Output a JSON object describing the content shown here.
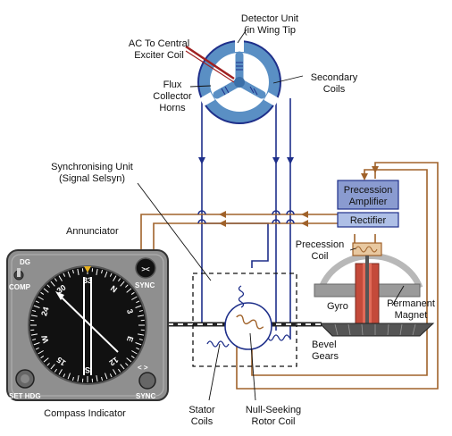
{
  "labels": {
    "detector_unit_line1": "Detector Unit",
    "detector_unit_line2": "(in Wing Tip",
    "ac_exciter_line1": "AC To Central",
    "ac_exciter_line2": "Exciter Coil",
    "flux_line1": "Flux",
    "flux_line2": "Collector",
    "flux_line3": "Horns",
    "secondary_line1": "Secondary",
    "secondary_line2": "Coils",
    "sync_unit_line1": "Synchronising Unit",
    "sync_unit_line2": "(Signal Selsyn)",
    "annunciator": "Annunciator",
    "precession_amp_line1": "Precession",
    "precession_amp_line2": "Amplifier",
    "rectifier": "Rectifier",
    "precession_coil_line1": "Precession",
    "precession_coil_line2": "Coil",
    "gyro": "Gyro",
    "permanent_line1": "Permanent",
    "permanent_line2": "Magnet",
    "bevel_line1": "Bevel",
    "bevel_line2": "Gears",
    "stator_line1": "Stator",
    "stator_line2": "Coils",
    "null_line1": "Null-Seeking",
    "null_line2": "Rotor Coil",
    "compass_indicator": "Compass Indicator"
  },
  "instrument": {
    "dg": "DG",
    "comp": "COMP",
    "sync_top": "SYNC",
    "sync_bottom": "SYNC",
    "set_hdg": "SET HDG",
    "annunciator_symbol": "><",
    "sync_arrows": "< >",
    "dial_numbers": [
      "33",
      "N",
      "3",
      "E",
      "12",
      "S",
      "15",
      "W",
      "24",
      "30"
    ]
  },
  "colors": {
    "blue_wire": "#1e2f8a",
    "brown_wire": "#a0622a",
    "detector_blue": "#5a8fc4",
    "amp_box": "#8a9bd0",
    "rect_box": "#aebfe6",
    "instrument_gray": "#8f8f8f"
  }
}
